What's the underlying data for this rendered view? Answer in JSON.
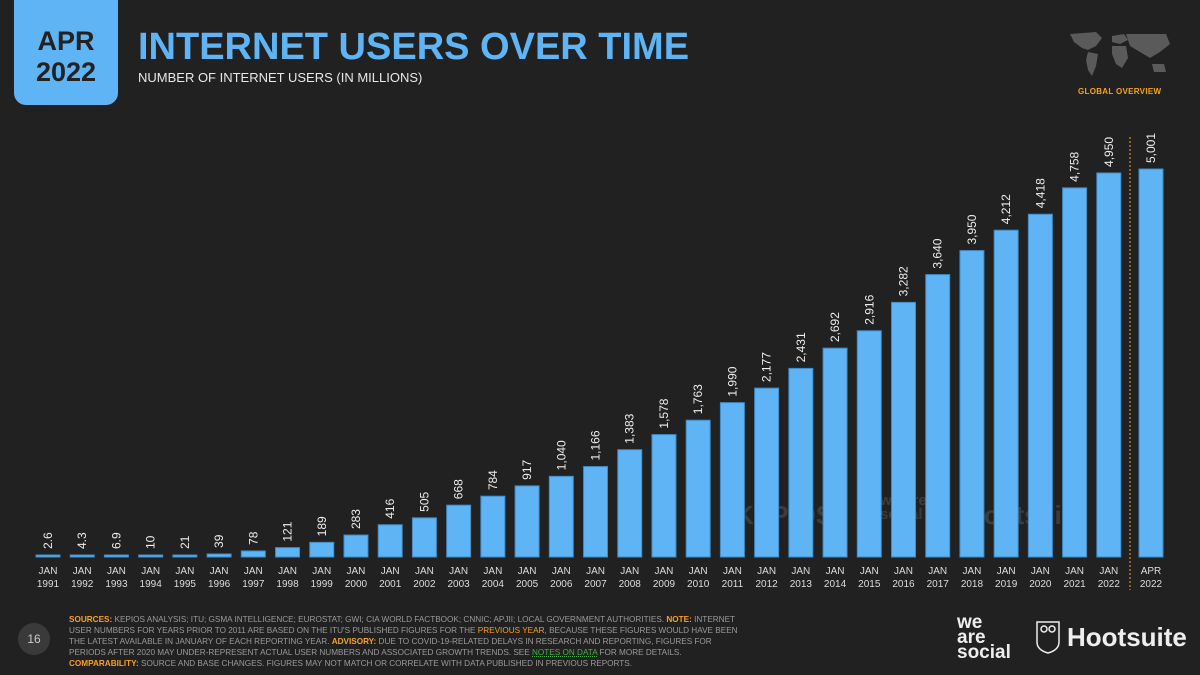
{
  "header": {
    "date_line1": "APR",
    "date_line2": "2022",
    "title": "INTERNET USERS OVER TIME",
    "subtitle": "NUMBER OF INTERNET USERS (IN MILLIONS)",
    "section": "GLOBAL OVERVIEW",
    "map_icon": "world-map-icon"
  },
  "colors": {
    "bar": "#5eb4f5",
    "accent": "#f7a21b",
    "background": "#212121",
    "link": "#43b049"
  },
  "chart_data": {
    "type": "bar",
    "title": "INTERNET USERS OVER TIME",
    "subtitle": "NUMBER OF INTERNET USERS (IN MILLIONS)",
    "categories": [
      [
        "JAN",
        "1991"
      ],
      [
        "JAN",
        "1992"
      ],
      [
        "JAN",
        "1993"
      ],
      [
        "JAN",
        "1994"
      ],
      [
        "JAN",
        "1995"
      ],
      [
        "JAN",
        "1996"
      ],
      [
        "JAN",
        "1997"
      ],
      [
        "JAN",
        "1998"
      ],
      [
        "JAN",
        "1999"
      ],
      [
        "JAN",
        "2000"
      ],
      [
        "JAN",
        "2001"
      ],
      [
        "JAN",
        "2002"
      ],
      [
        "JAN",
        "2003"
      ],
      [
        "JAN",
        "2004"
      ],
      [
        "JAN",
        "2005"
      ],
      [
        "JAN",
        "2006"
      ],
      [
        "JAN",
        "2007"
      ],
      [
        "JAN",
        "2008"
      ],
      [
        "JAN",
        "2009"
      ],
      [
        "JAN",
        "2010"
      ],
      [
        "JAN",
        "2011"
      ],
      [
        "JAN",
        "2012"
      ],
      [
        "JAN",
        "2013"
      ],
      [
        "JAN",
        "2014"
      ],
      [
        "JAN",
        "2015"
      ],
      [
        "JAN",
        "2016"
      ],
      [
        "JAN",
        "2017"
      ],
      [
        "JAN",
        "2018"
      ],
      [
        "JAN",
        "2019"
      ],
      [
        "JAN",
        "2020"
      ],
      [
        "JAN",
        "2021"
      ],
      [
        "JAN",
        "2022"
      ],
      [
        "APR",
        "2022"
      ]
    ],
    "values": [
      2.6,
      4.3,
      6.9,
      10,
      21,
      39,
      78,
      121,
      189,
      283,
      416,
      505,
      668,
      784,
      917,
      1040,
      1166,
      1383,
      1578,
      1763,
      1990,
      2177,
      2431,
      2692,
      2916,
      3282,
      3640,
      3950,
      4212,
      4418,
      4758,
      4950,
      5001
    ],
    "labels": [
      "2.6",
      "4.3",
      "6.9",
      "10",
      "21",
      "39",
      "78",
      "121",
      "189",
      "283",
      "416",
      "505",
      "668",
      "784",
      "917",
      "1,040",
      "1,166",
      "1,383",
      "1,578",
      "1,763",
      "1,990",
      "2,177",
      "2,431",
      "2,692",
      "2,916",
      "3,282",
      "3,640",
      "3,950",
      "4,212",
      "4,418",
      "4,758",
      "4,950",
      "5,001"
    ],
    "ylim": [
      0,
      5001
    ],
    "grid": false,
    "separator_before": "APR 2022"
  },
  "watermarks": [
    "KEPIOS",
    "we are social",
    "Hootsuite"
  ],
  "footer": {
    "sources_label": "SOURCES:",
    "sources_text": " KEPIOS ANALYSIS; ITU; GSMA INTELLIGENCE; EUROSTAT; GWI; CIA WORLD FACTBOOK; CNNIC; APJII; LOCAL GOVERNMENT AUTHORITIES. ",
    "note_label": "NOTE:",
    "note_text1": " INTERNET USER NUMBERS FOR YEARS PRIOR TO 2011 ARE BASED ON THE ITU'S PUBLISHED FIGURES FOR THE ",
    "previous_year": "PREVIOUS YEAR",
    "note_text2": ", BECAUSE THESE FIGURES WOULD HAVE BEEN THE LATEST AVAILABLE IN JANUARY OF EACH REPORTING YEAR. ",
    "advisory_label": "ADVISORY:",
    "advisory_text": " DUE TO COVID-19-RELATED DELAYS IN RESEARCH AND REPORTING, FIGURES FOR PERIODS AFTER 2020 MAY UNDER-REPRESENT ACTUAL USER NUMBERS AND ASSOCIATED GROWTH TRENDS. SEE ",
    "notes_link": "NOTES ON DATA",
    "advisory_text2": " FOR MORE DETAILS. ",
    "comparability_label": "COMPARABILITY:",
    "comparability_text": " SOURCE AND BASE CHANGES. FIGURES MAY NOT MATCH OR CORRELATE WITH DATA PUBLISHED IN PREVIOUS REPORTS.",
    "page_number": "16",
    "logo_was": [
      "we",
      "are",
      "social"
    ],
    "logo_hootsuite": "Hootsuite"
  }
}
